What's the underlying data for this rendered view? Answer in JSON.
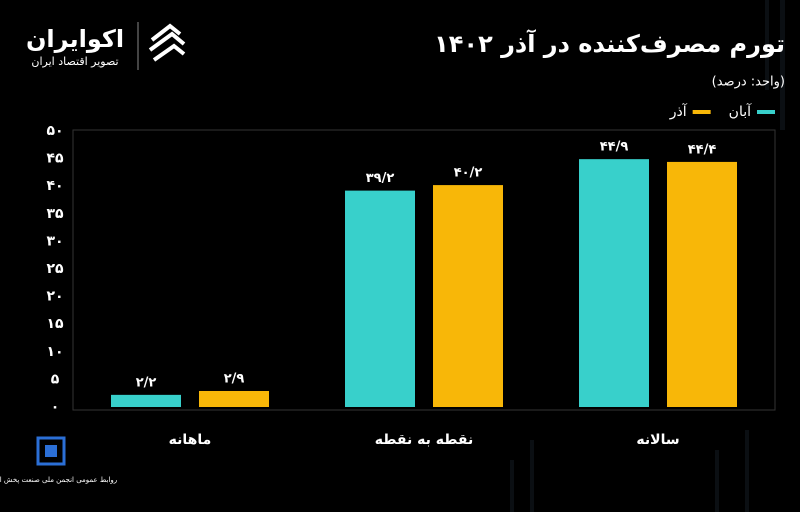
{
  "branding": {
    "name": "اکوایران",
    "tagline": "تصویر اقتصاد ایران",
    "source": "روابط عمومی انجمن ملی صنعت پخش ایران"
  },
  "chart_data": {
    "type": "bar",
    "title": "تورم مصرف‌کننده در آذر ۱۴۰۲",
    "subtitle": "(واحد: درصد)",
    "categories": [
      "ماهانه",
      "نقطه به نقطه",
      "سالانه"
    ],
    "series": [
      {
        "name": "آبان",
        "color": "#38d0cb",
        "values": [
          2.2,
          39.2,
          44.9
        ],
        "value_labels": [
          "۲/۲",
          "۳۹/۲",
          "۴۴/۹"
        ]
      },
      {
        "name": "آذر",
        "color": "#f8b708",
        "values": [
          2.9,
          40.2,
          44.4
        ],
        "value_labels": [
          "۲/۹",
          "۴۰/۲",
          "۴۴/۴"
        ]
      }
    ],
    "ylim": [
      0,
      50
    ],
    "yticks": [
      {
        "value": 0,
        "label": "۰"
      },
      {
        "value": 5,
        "label": "۵"
      },
      {
        "value": 10,
        "label": "۱۰"
      },
      {
        "value": 15,
        "label": "۱۵"
      },
      {
        "value": 20,
        "label": "۲۰"
      },
      {
        "value": 25,
        "label": "۲۵"
      },
      {
        "value": 30,
        "label": "۳۰"
      },
      {
        "value": 35,
        "label": "۳۵"
      },
      {
        "value": 40,
        "label": "۴۰"
      },
      {
        "value": 45,
        "label": "۴۵"
      },
      {
        "value": 50,
        "label": "۵۰"
      }
    ],
    "grid": false,
    "legend": "top-right"
  }
}
